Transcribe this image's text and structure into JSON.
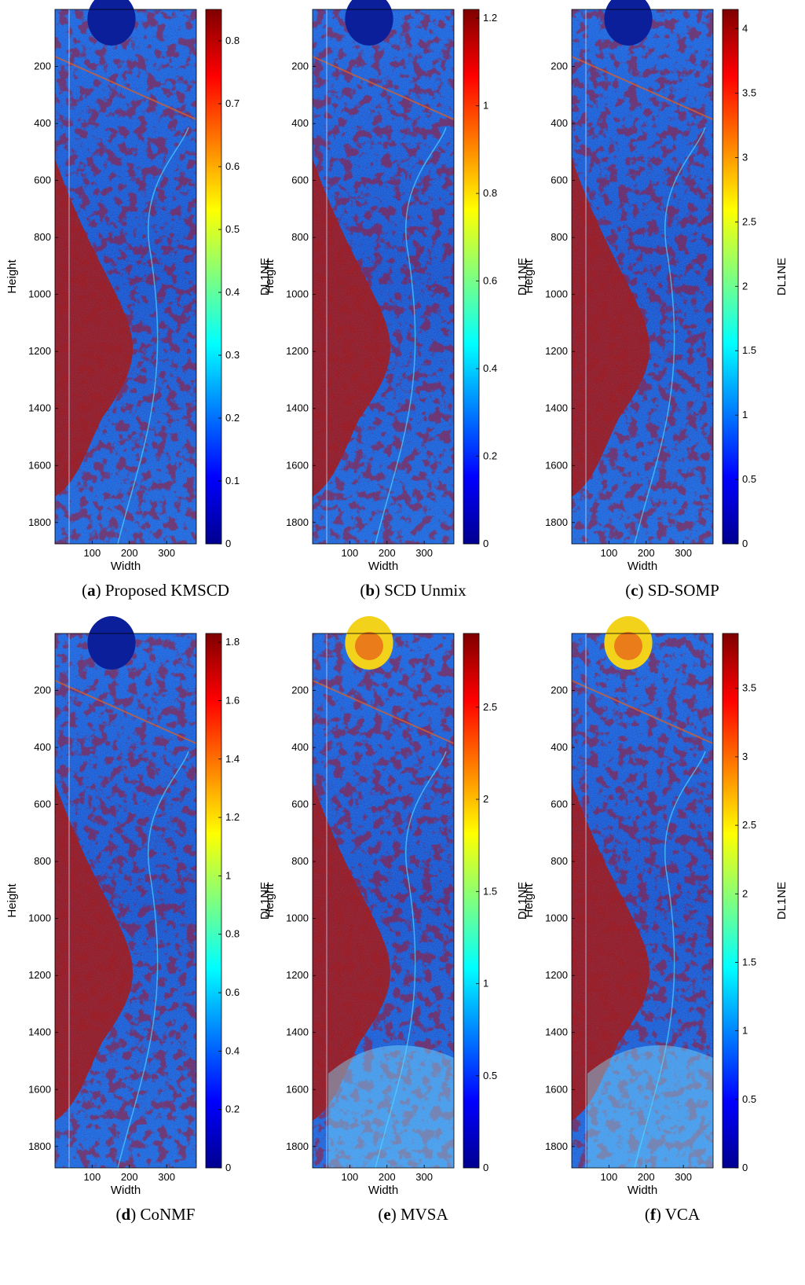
{
  "figure": {
    "colormap": "jet",
    "colormap_stops": [
      "#00008f",
      "#0000ff",
      "#007fff",
      "#00ffff",
      "#7fff7f",
      "#ffff00",
      "#ff7f00",
      "#ff0000",
      "#7f0000"
    ]
  },
  "chart_data": [
    {
      "type": "heatmap",
      "caption_letter": "a",
      "caption_text": "Proposed KMSCD",
      "xlabel": "Width",
      "ylabel": "Height",
      "colorbar_label": "DL1NE",
      "xticks": [
        "100",
        "200",
        "300"
      ],
      "yticks": [
        "200",
        "400",
        "600",
        "800",
        "1000",
        "1200",
        "1400",
        "1600",
        "1800"
      ],
      "colorbar_ticks": [
        "0",
        "0.1",
        "0.2",
        "0.3",
        "0.4",
        "0.5",
        "0.6",
        "0.7",
        "0.8"
      ],
      "xlim": [
        0,
        380
      ],
      "ylim": [
        1875,
        0
      ],
      "clim": [
        0,
        0.85
      ]
    },
    {
      "type": "heatmap",
      "caption_letter": "b",
      "caption_text": "SCD Unmix",
      "xlabel": "Width",
      "ylabel": "Height",
      "colorbar_label": "DL1NE",
      "xticks": [
        "100",
        "200",
        "300"
      ],
      "yticks": [
        "200",
        "400",
        "600",
        "800",
        "1000",
        "1200",
        "1400",
        "1600",
        "1800"
      ],
      "colorbar_ticks": [
        "0",
        "0.2",
        "0.4",
        "0.6",
        "0.8",
        "1",
        "1.2"
      ],
      "xlim": [
        0,
        380
      ],
      "ylim": [
        1875,
        0
      ],
      "clim": [
        0,
        1.22
      ]
    },
    {
      "type": "heatmap",
      "caption_letter": "c",
      "caption_text": "SD-SOMP",
      "xlabel": "Width",
      "ylabel": "Height",
      "colorbar_label": "DL1NE",
      "xticks": [
        "100",
        "200",
        "300"
      ],
      "yticks": [
        "200",
        "400",
        "600",
        "800",
        "1000",
        "1200",
        "1400",
        "1600",
        "1800"
      ],
      "colorbar_ticks": [
        "0",
        "0.5",
        "1",
        "1.5",
        "2",
        "2.5",
        "3",
        "3.5",
        "4"
      ],
      "xlim": [
        0,
        380
      ],
      "ylim": [
        1875,
        0
      ],
      "clim": [
        0,
        4.15
      ]
    },
    {
      "type": "heatmap",
      "caption_letter": "d",
      "caption_text": "CoNMF",
      "xlabel": "Width",
      "ylabel": "Height",
      "colorbar_label": "DL1NE",
      "xticks": [
        "100",
        "200",
        "300"
      ],
      "yticks": [
        "200",
        "400",
        "600",
        "800",
        "1000",
        "1200",
        "1400",
        "1600",
        "1800"
      ],
      "colorbar_ticks": [
        "0",
        "0.2",
        "0.4",
        "0.6",
        "0.8",
        "1",
        "1.2",
        "1.4",
        "1.6",
        "1.8"
      ],
      "xlim": [
        0,
        380
      ],
      "ylim": [
        1875,
        0
      ],
      "clim": [
        0,
        1.83
      ]
    },
    {
      "type": "heatmap",
      "caption_letter": "e",
      "caption_text": "MVSA",
      "xlabel": "Width",
      "ylabel": "Height",
      "colorbar_label": "DL1NE",
      "xticks": [
        "100",
        "200",
        "300"
      ],
      "yticks": [
        "200",
        "400",
        "600",
        "800",
        "1000",
        "1200",
        "1400",
        "1600",
        "1800"
      ],
      "colorbar_ticks": [
        "0",
        "0.5",
        "1",
        "1.5",
        "2",
        "2.5"
      ],
      "xlim": [
        0,
        380
      ],
      "ylim": [
        1875,
        0
      ],
      "clim": [
        0,
        2.9
      ]
    },
    {
      "type": "heatmap",
      "caption_letter": "f",
      "caption_text": "VCA",
      "xlabel": "Width",
      "ylabel": "Height",
      "colorbar_label": "DL1NE",
      "xticks": [
        "100",
        "200",
        "300"
      ],
      "yticks": [
        "200",
        "400",
        "600",
        "800",
        "1000",
        "1200",
        "1400",
        "1600",
        "1800"
      ],
      "colorbar_ticks": [
        "0",
        "0.5",
        "1",
        "1.5",
        "2",
        "2.5",
        "3",
        "3.5"
      ],
      "xlim": [
        0,
        380
      ],
      "ylim": [
        1875,
        0
      ],
      "clim": [
        0,
        3.9
      ]
    }
  ]
}
